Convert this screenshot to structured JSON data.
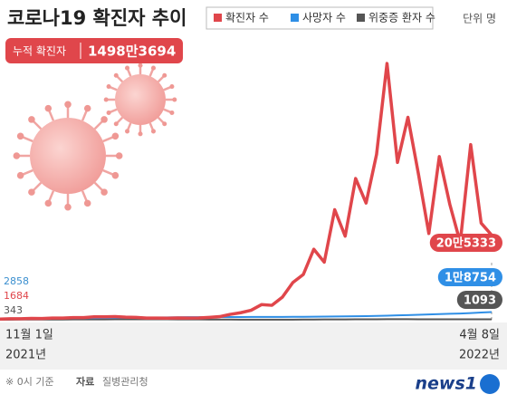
{
  "chart_data": {
    "type": "line",
    "title": "코로나19 확진자 추이",
    "unit": "단위 명",
    "cumulative": {
      "label": "누적 확진자",
      "value": "1498만3694"
    },
    "categories": [
      "11월 1일",
      null,
      null,
      null,
      null,
      null,
      null,
      null,
      null,
      null,
      null,
      null,
      null,
      null,
      null,
      null,
      null,
      null,
      null,
      null,
      null,
      null,
      null,
      null,
      null,
      null,
      null,
      null,
      null,
      null,
      null,
      null,
      null,
      null,
      null,
      null,
      null,
      null,
      null,
      null,
      null,
      null,
      null,
      null,
      null,
      null,
      null,
      "4월 8일"
    ],
    "years": [
      "2021년",
      "2022년"
    ],
    "ylim": [
      0,
      650000
    ],
    "series": [
      {
        "name": "확진자 수",
        "color": "#e0464b",
        "values": [
          1684,
          2600,
          2500,
          3200,
          3100,
          4100,
          4000,
          5300,
          5100,
          7100,
          7000,
          7800,
          6200,
          5800,
          4200,
          4000,
          3800,
          4400,
          4200,
          4400,
          5800,
          7600,
          13000,
          17000,
          22900,
          36700,
          35000,
          54900,
          90400,
          109800,
          171000,
          139600,
          266800,
          202700,
          342400,
          282900,
          400700,
          621300,
          381400,
          490800,
          353900,
          209100,
          395500,
          280200,
          187200,
          424600,
          234300,
          205333
        ],
        "value_labels": [
          null,
          null,
          null,
          null,
          null,
          null,
          null,
          null,
          null,
          null,
          null,
          null,
          null,
          null,
          null,
          null,
          null,
          null,
          null,
          null,
          null,
          null,
          null,
          null,
          null,
          null,
          null,
          null,
          null,
          null,
          null,
          null,
          null,
          null,
          null,
          null,
          null,
          null,
          null,
          null,
          null,
          null,
          null,
          null,
          null,
          null,
          null,
          "20만5333"
        ]
      },
      {
        "name": "사망자 수",
        "color": "#2f8fe6",
        "values": [
          2858,
          2900,
          2960,
          3040,
          3140,
          3270,
          3400,
          3580,
          3780,
          4020,
          4290,
          4590,
          4880,
          5150,
          5380,
          5620,
          5840,
          6040,
          6200,
          6340,
          6450,
          6540,
          6620,
          6700,
          6770,
          6840,
          6900,
          6970,
          7060,
          7200,
          7370,
          7570,
          7850,
          8100,
          8440,
          8810,
          9330,
          9950,
          10590,
          11250,
          11980,
          12790,
          13650,
          14480,
          15190,
          16230,
          17570,
          18754
        ],
        "value_labels": [
          null,
          null,
          null,
          null,
          null,
          null,
          null,
          null,
          null,
          null,
          null,
          null,
          null,
          null,
          null,
          null,
          null,
          null,
          null,
          null,
          null,
          null,
          null,
          null,
          null,
          null,
          null,
          null,
          null,
          null,
          null,
          null,
          null,
          null,
          null,
          null,
          null,
          null,
          null,
          null,
          null,
          null,
          null,
          null,
          null,
          null,
          null,
          "1만8754"
        ]
      },
      {
        "name": "위중증 환자 수",
        "color": "#555555",
        "values": [
          343,
          400,
          450,
          480,
          530,
          600,
          650,
          700,
          760,
          850,
          900,
          1000,
          1050,
          1080,
          1100,
          1050,
          1000,
          900,
          800,
          700,
          600,
          500,
          430,
          400,
          300,
          280,
          270,
          290,
          400,
          480,
          660,
          730,
          900,
          950,
          1100,
          1150,
          1200,
          1250,
          1300,
          1250,
          1200,
          1150,
          1130,
          1100,
          1100,
          1120,
          1100,
          1093
        ]
      }
    ],
    "note": "※ 0시 기준",
    "source_label": "자료",
    "source": "질병관리청",
    "logo": "news1"
  }
}
